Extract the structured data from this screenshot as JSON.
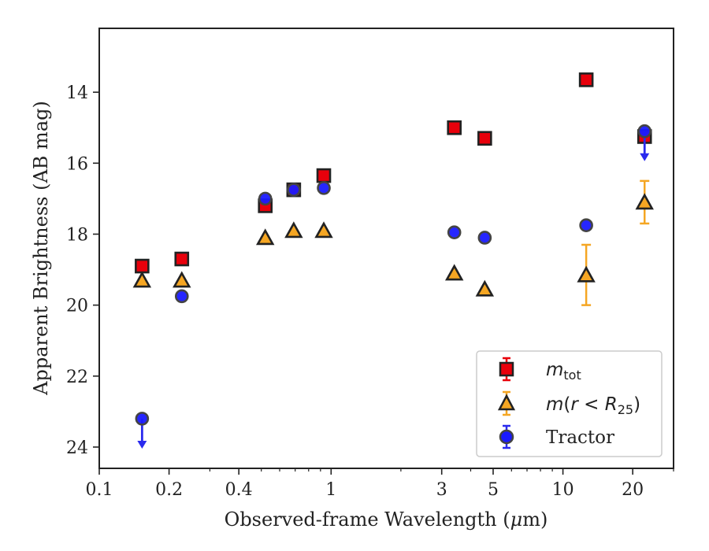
{
  "chart_data": {
    "type": "scatter",
    "xlabel_parts": [
      "Observed-frame Wavelength (",
      "μ",
      "m)"
    ],
    "ylabel": "Apparent Brightness (AB mag)",
    "x_scale": "log",
    "xlim": [
      0.1,
      30
    ],
    "ylim": [
      24.6,
      12.2
    ],
    "y_inverted": true,
    "x_ticks": [
      0.1,
      0.2,
      0.4,
      1,
      3,
      5,
      10,
      20
    ],
    "x_tick_labels": [
      "0.1",
      "0.2",
      "0.4",
      "1",
      "3",
      "5",
      "10",
      "20"
    ],
    "y_ticks": [
      14,
      16,
      18,
      20,
      22,
      24
    ],
    "y_tick_labels": [
      "14",
      "16",
      "18",
      "20",
      "22",
      "24"
    ],
    "grid": false,
    "legend_position": "lower right",
    "series": [
      {
        "key": "mtot",
        "legend_base": "m",
        "legend_sub": "tot",
        "marker": "square",
        "color": "#e8000b",
        "edge": "#222222",
        "points": [
          {
            "x": 0.153,
            "y": 18.9
          },
          {
            "x": 0.227,
            "y": 18.7
          },
          {
            "x": 0.52,
            "y": 17.2
          },
          {
            "x": 0.69,
            "y": 16.75
          },
          {
            "x": 0.93,
            "y": 16.35
          },
          {
            "x": 3.4,
            "y": 15.0
          },
          {
            "x": 4.6,
            "y": 15.3
          },
          {
            "x": 12.6,
            "y": 13.65
          },
          {
            "x": 22.5,
            "y": 15.25
          }
        ]
      },
      {
        "key": "mr25",
        "legend_base": "m",
        "legend_paren_open": "(",
        "legend_r": "r",
        "legend_lt": " < ",
        "legend_R": "R",
        "legend_R_sub": "25",
        "legend_paren_close": ")",
        "marker": "triangle",
        "color": "#f5a623",
        "edge": "#222222",
        "errorbar_color": "#f5a623",
        "points": [
          {
            "x": 0.153,
            "y": 19.3
          },
          {
            "x": 0.227,
            "y": 19.3
          },
          {
            "x": 0.52,
            "y": 18.1
          },
          {
            "x": 0.69,
            "y": 17.9
          },
          {
            "x": 0.93,
            "y": 17.9
          },
          {
            "x": 3.4,
            "y": 19.1
          },
          {
            "x": 4.6,
            "y": 19.55
          },
          {
            "x": 12.6,
            "y": 19.15,
            "err": 0.85
          },
          {
            "x": 22.5,
            "y": 17.1,
            "err": 0.6
          }
        ]
      },
      {
        "key": "tractor",
        "name": "Tractor",
        "marker": "circle",
        "color": "#1a1aff",
        "edge": "#444444",
        "errorbar_color": "#2a2aee",
        "points": [
          {
            "x": 0.153,
            "y": 23.2,
            "upper_limit": true
          },
          {
            "x": 0.227,
            "y": 19.75
          },
          {
            "x": 0.52,
            "y": 17.0
          },
          {
            "x": 0.69,
            "y": 16.75
          },
          {
            "x": 0.93,
            "y": 16.7
          },
          {
            "x": 3.4,
            "y": 17.95
          },
          {
            "x": 4.6,
            "y": 18.1
          },
          {
            "x": 12.6,
            "y": 17.75
          },
          {
            "x": 22.5,
            "y": 15.1,
            "upper_limit": true
          }
        ]
      }
    ]
  }
}
